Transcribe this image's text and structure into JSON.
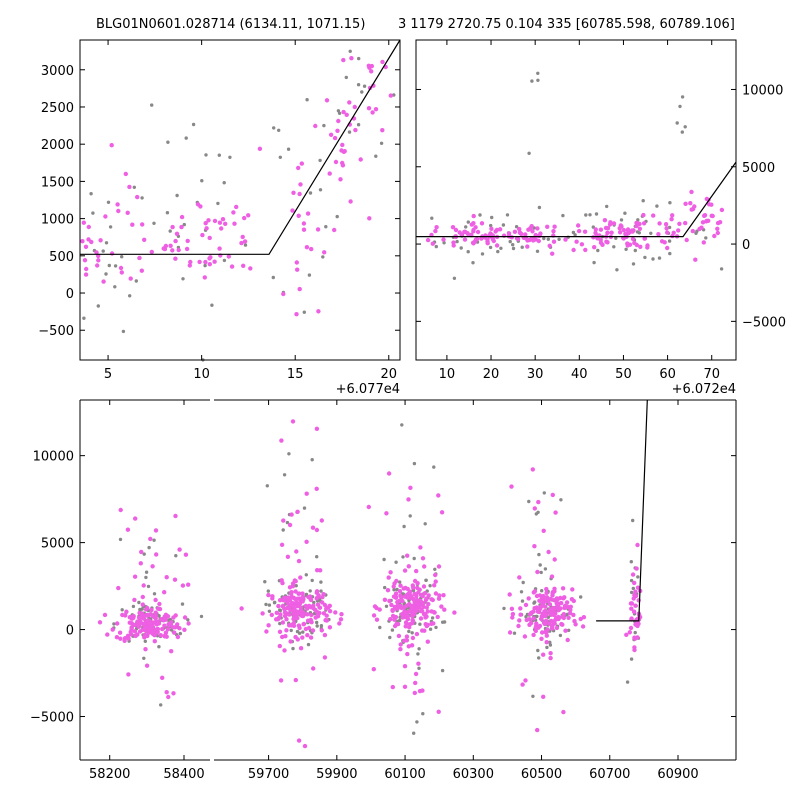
{
  "titles": {
    "left": "BLG01N0601.028714 (6134.11, 1071.15)",
    "right": "3 1179 2720.75 0.104 335 [60785.598, 60789.106]"
  },
  "colors": {
    "series_a": "#ee5fe3",
    "series_b": "#888888",
    "model": "#000000",
    "axes": "#000000"
  },
  "chart_data": [
    {
      "type": "scatter",
      "panel": "top-left",
      "x_offset_label": "+6.077e4",
      "xlim": [
        3.5,
        20.6
      ],
      "ylim": [
        -900,
        3400
      ],
      "xticks": [
        5,
        10,
        15,
        20
      ],
      "yticks": [
        -500,
        0,
        500,
        1000,
        1500,
        2000,
        2500,
        3000
      ],
      "series": [
        {
          "color": "magenta",
          "clusters": [
            {
              "xc": 4,
              "xs": 0.4,
              "yc": 520,
              "ys": 220,
              "n": 14
            },
            {
              "xc": 5.9,
              "xs": 0.6,
              "yc": 900,
              "ys": 500,
              "n": 14
            },
            {
              "xc": 7.9,
              "xs": 0.7,
              "yc": 650,
              "ys": 250,
              "n": 18
            },
            {
              "xc": 10.1,
              "xs": 0.8,
              "yc": 800,
              "ys": 350,
              "n": 22
            },
            {
              "xc": 12.3,
              "xs": 0.6,
              "yc": 800,
              "ys": 350,
              "n": 14
            },
            {
              "xc": 15.2,
              "xs": 0.6,
              "yc": 900,
              "ys": 900,
              "n": 24
            },
            {
              "xc": 17.6,
              "xs": 0.5,
              "yc": 2000,
              "ys": 500,
              "n": 26
            },
            {
              "xc": 19.0,
              "xs": 0.4,
              "yc": 2750,
              "ys": 350,
              "n": 14
            }
          ]
        },
        {
          "color": "gray",
          "clusters": [
            {
              "xc": 4.5,
              "xs": 1,
              "yc": 500,
              "ys": 600,
              "n": 14
            },
            {
              "xc": 8,
              "xs": 1.8,
              "yc": 700,
              "ys": 900,
              "n": 22
            },
            {
              "xc": 11.5,
              "xs": 1.6,
              "yc": 900,
              "ys": 900,
              "n": 18
            },
            {
              "xc": 15.5,
              "xs": 1.2,
              "yc": 1100,
              "ys": 900,
              "n": 14
            },
            {
              "xc": 18.5,
              "xs": 1,
              "yc": 2500,
              "ys": 500,
              "n": 14
            }
          ]
        }
      ],
      "model_line": {
        "x": [
          3.5,
          13.6,
          20.6
        ],
        "y": [
          520,
          520,
          3400
        ]
      }
    },
    {
      "type": "scatter",
      "panel": "top-right",
      "x_offset_label": "+6.072e4",
      "xlim": [
        3,
        75.5
      ],
      "ylim": [
        -7500,
        13200
      ],
      "xticks": [
        10,
        20,
        30,
        40,
        50,
        60,
        70
      ],
      "yticks": [
        -5000,
        0,
        5000,
        10000
      ],
      "series": [
        {
          "color": "magenta",
          "clusters": [
            {
              "xc": 20,
              "xs": 9,
              "yc": 500,
              "ys": 400,
              "n": 90
            },
            {
              "xc": 52,
              "xs": 8,
              "yc": 650,
              "ys": 500,
              "n": 90
            },
            {
              "xc": 68,
              "xs": 3,
              "yc": 1800,
              "ys": 700,
              "n": 30
            }
          ]
        },
        {
          "color": "gray",
          "clusters": [
            {
              "xc": 22,
              "xs": 10,
              "yc": 500,
              "ys": 800,
              "n": 45
            },
            {
              "xc": 52,
              "xs": 9,
              "yc": 700,
              "ys": 900,
              "n": 45
            },
            {
              "xc": 30,
              "xs": 1,
              "yc": 9500,
              "ys": 2000,
              "n": 4
            },
            {
              "xc": 63,
              "xs": 1.5,
              "yc": 6000,
              "ys": 1800,
              "n": 5
            }
          ]
        }
      ],
      "model_line": {
        "x": [
          3,
          63.5,
          75.5
        ],
        "y": [
          480,
          480,
          5300
        ]
      }
    },
    {
      "type": "scatter",
      "panel": "bottom",
      "xlim": [
        58120,
        61070
      ],
      "ylim": [
        -7500,
        13200
      ],
      "xticks": [
        58200,
        58400,
        59700,
        59900,
        60100,
        60300,
        60500,
        60700,
        60900
      ],
      "yticks": [
        -5000,
        0,
        5000,
        10000
      ],
      "broken_axis": true,
      "segments": [
        {
          "xlim": [
            58120,
            58470
          ],
          "clusters": [
            {
              "xc": 58305,
              "xs": 45,
              "yc": 300,
              "ys": 500,
              "n": 140
            },
            {
              "xc": 58305,
              "xs": 45,
              "yc": 1500,
              "ys": 2800,
              "n": 40
            }
          ]
        },
        {
          "xlim": [
            59540,
            61070
          ],
          "clusters": [
            {
              "xc": 59790,
              "xs": 45,
              "yc": 1100,
              "ys": 700,
              "n": 150
            },
            {
              "xc": 59790,
              "xs": 45,
              "yc": 2200,
              "ys": 3600,
              "n": 45
            },
            {
              "xc": 60120,
              "xs": 42,
              "yc": 1300,
              "ys": 800,
              "n": 150
            },
            {
              "xc": 60120,
              "xs": 42,
              "yc": 2200,
              "ys": 3800,
              "n": 45
            },
            {
              "xc": 60510,
              "xs": 40,
              "yc": 900,
              "ys": 700,
              "n": 130
            },
            {
              "xc": 60510,
              "xs": 40,
              "yc": 1800,
              "ys": 3500,
              "n": 40
            },
            {
              "xc": 60775,
              "xs": 8,
              "yc": 900,
              "ys": 800,
              "n": 30
            },
            {
              "xc": 60775,
              "xs": 8,
              "yc": 2000,
              "ys": 2500,
              "n": 10
            }
          ]
        }
      ],
      "model_line": {
        "x": [
          60660,
          60785,
          60810
        ],
        "y": [
          500,
          500,
          13200
        ]
      }
    }
  ]
}
